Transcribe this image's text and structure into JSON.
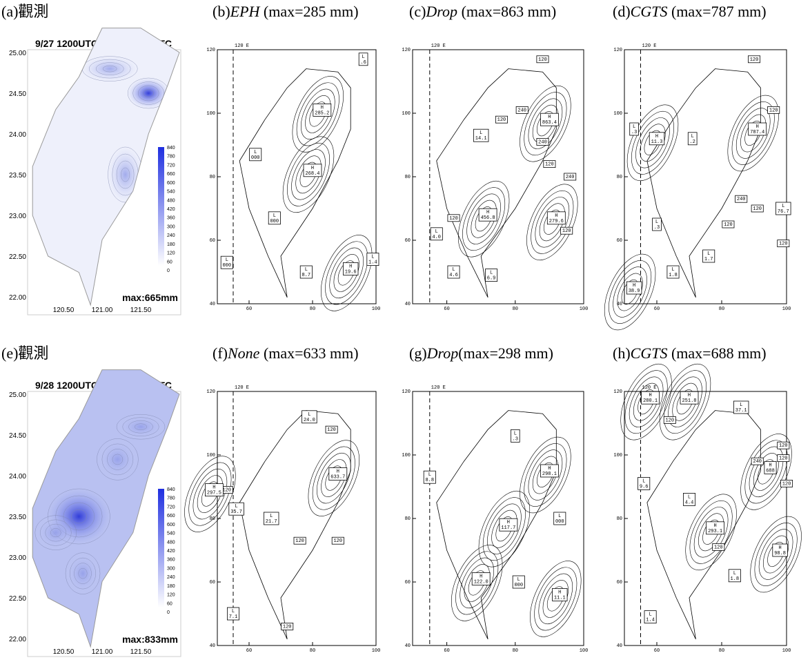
{
  "panels": [
    {
      "label": "(a)",
      "title": "觀測",
      "period": "9/27 1200UTC ~ 9/28 1200UTC",
      "max": "max:665mm"
    },
    {
      "label": "(b)",
      "model": "EPH",
      "note": " (max=285 mm)",
      "boxes": [
        [
          "L",
          ".6"
        ],
        [
          "H",
          "285.2"
        ],
        [
          "L",
          "000"
        ],
        [
          "H",
          "268.4"
        ],
        [
          "L",
          "000"
        ],
        [
          "L",
          "000"
        ],
        [
          "L",
          "1.4"
        ],
        [
          "L",
          "8.7"
        ],
        [
          "H",
          "19.6"
        ]
      ]
    },
    {
      "label": "(c)",
      "model": "Drop",
      "note": " (max=863 mm)",
      "boxes": [
        [
          "120"
        ],
        [
          "240"
        ],
        [
          "120"
        ],
        [
          "H",
          "863.4"
        ],
        [
          "L",
          "14.1"
        ],
        [
          "240"
        ],
        [
          "120"
        ],
        [
          "240"
        ],
        [
          "H",
          "456.8"
        ],
        [
          "120"
        ],
        [
          "H",
          "279.6"
        ],
        [
          "L",
          "4.0"
        ],
        [
          "120"
        ],
        [
          "L",
          "4.6"
        ],
        [
          "L",
          "6.9"
        ]
      ]
    },
    {
      "label": "(d)",
      "model": "CGTS",
      "note": " (max=787 mm)",
      "boxes": [
        [
          "120"
        ],
        [
          "120"
        ],
        [
          "H",
          "787.4"
        ],
        [
          "L",
          ".3"
        ],
        [
          "H",
          "11.3"
        ],
        [
          "L",
          ".2"
        ],
        [
          "240"
        ],
        [
          "120"
        ],
        [
          "L",
          "76.7"
        ],
        [
          "L",
          ".3"
        ],
        [
          "120"
        ],
        [
          "120"
        ],
        [
          "L",
          "1.7"
        ],
        [
          "L",
          "1.8"
        ],
        [
          "H",
          "38.9"
        ]
      ]
    },
    {
      "label": "(e)",
      "title": "觀測",
      "period": "9/28 1200UTC ~ 9/29 1200UTC",
      "max": "max:833mm"
    },
    {
      "label": "(f)",
      "model": "None",
      "note": " (max=633 mm)",
      "boxes": [
        [
          "L",
          "24.0"
        ],
        [
          "120"
        ],
        [
          "120"
        ],
        [
          "H",
          "297.5"
        ],
        [
          "H",
          "633.7"
        ],
        [
          "L",
          "35.7"
        ],
        [
          "L",
          "21.7"
        ],
        [
          "120"
        ],
        [
          "120"
        ],
        [
          "L",
          "7.1"
        ],
        [
          "120"
        ]
      ]
    },
    {
      "label": "(g)",
      "model": "Drop",
      "note": "(max=298 mm)",
      "boxes": [
        [
          "L",
          ".3"
        ],
        [
          "L",
          "8.8"
        ],
        [
          "H",
          "298.1"
        ],
        [
          "L",
          "000"
        ],
        [
          "H",
          "117.7"
        ],
        [
          "H",
          "122.0"
        ],
        [
          "L",
          "000"
        ],
        [
          "H",
          "11.1"
        ]
      ]
    },
    {
      "label": "(h)",
      "model": "CGTS",
      "note": " (max=688 mm)",
      "boxes": [
        [
          "H",
          "280.1"
        ],
        [
          "H",
          "251.8"
        ],
        [
          "L",
          "37.1"
        ],
        [
          "120"
        ],
        [
          "120"
        ],
        [
          "120"
        ],
        [
          "240"
        ],
        [
          "H",
          "688"
        ],
        [
          "L",
          "9.6"
        ],
        [
          "120"
        ],
        [
          "L",
          "4.4"
        ],
        [
          "H",
          "293.1"
        ],
        [
          "120"
        ],
        [
          "H",
          "98.8"
        ],
        [
          "L",
          "1.8"
        ],
        [
          "L",
          "1.4"
        ]
      ]
    }
  ],
  "obs_axes": {
    "lat": [
      "25.00",
      "24.50",
      "24.00",
      "23.50",
      "23.00",
      "22.50",
      "22.00"
    ],
    "lon": [
      "120.50",
      "121.00",
      "121.50"
    ],
    "colorbar": [
      "840",
      "780",
      "720",
      "660",
      "600",
      "540",
      "480",
      "420",
      "360",
      "300",
      "240",
      "180",
      "120",
      "60",
      "0"
    ]
  },
  "model_axes": {
    "yticks": [
      "120",
      "100",
      "80",
      "60",
      "40"
    ],
    "xticks": [
      "60",
      "80",
      "100"
    ],
    "meridian": "120 E"
  }
}
